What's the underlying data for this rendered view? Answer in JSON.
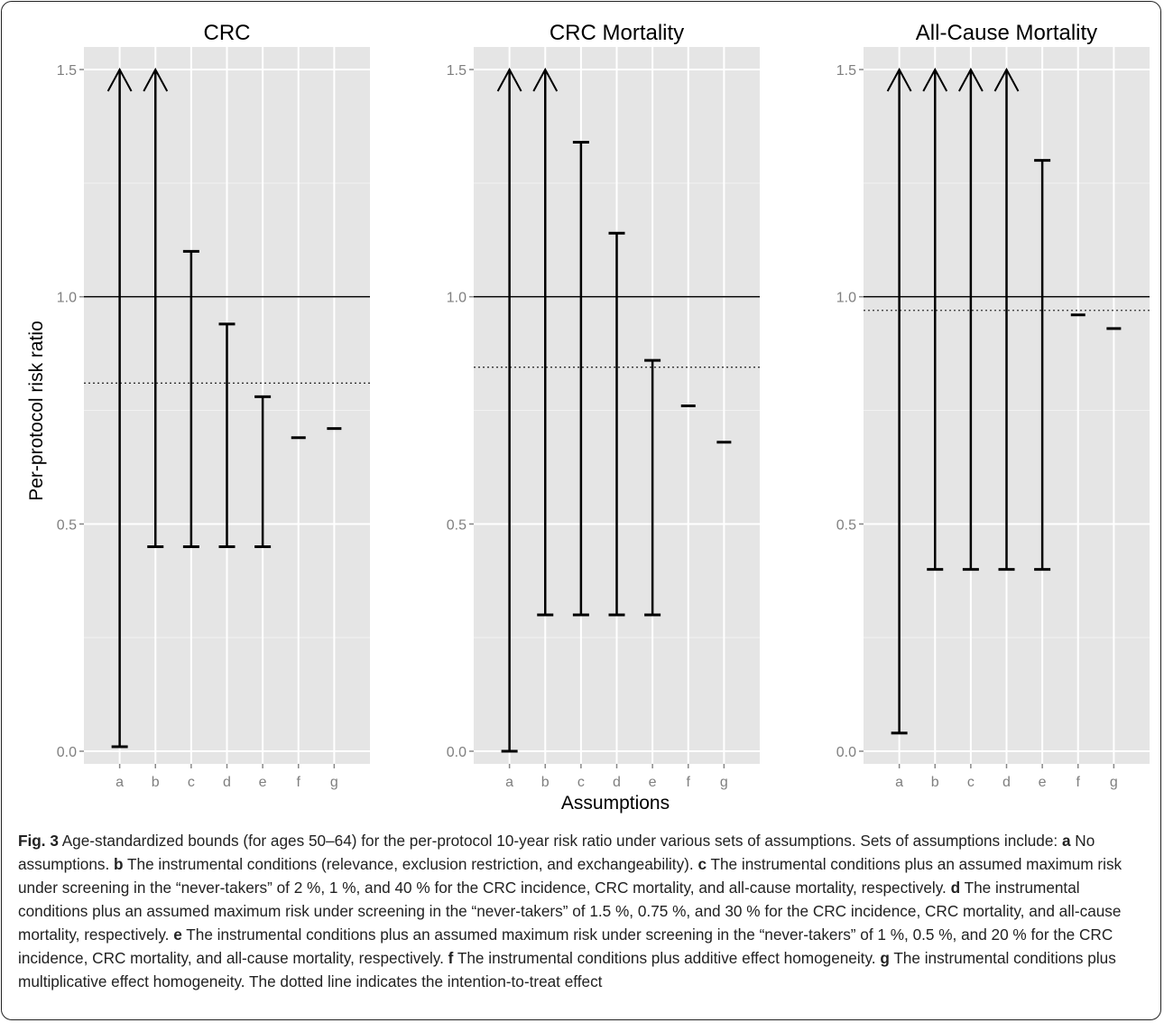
{
  "figure": {
    "y_axis_label": "Per-protocol risk ratio",
    "x_axis_label": "Assumptions",
    "caption_label": "Fig. 3",
    "caption_intro": "Age-standardized bounds (for ages 50–64) for the per-protocol 10-year risk ratio under various sets of assumptions. Sets of assumptions include: ",
    "caption_items": [
      {
        "letter": "a",
        "text": "No assumptions."
      },
      {
        "letter": "b",
        "text": "The instrumental conditions (relevance, exclusion restriction, and exchangeability)."
      },
      {
        "letter": "c",
        "text": "The instrumental conditions plus an assumed maximum risk under screening in the “never-takers” of 2 %, 1 %, and 40 % for the CRC incidence, CRC mortality, and all-cause mortality, respectively."
      },
      {
        "letter": "d",
        "text": "The instrumental conditions plus an assumed maximum risk under screening in the “never-takers” of 1.5 %, 0.75 %, and 30 % for the CRC incidence, CRC mortality, and all-cause mortality, respectively."
      },
      {
        "letter": "e",
        "text": "The instrumental conditions plus an assumed maximum risk under screening in the “never-takers” of 1 %, 0.5 %, and 20 % for the CRC incidence, CRC mortality, and all-cause mortality, respectively."
      },
      {
        "letter": "f",
        "text": "The instrumental conditions plus additive effect homogeneity."
      },
      {
        "letter": "g",
        "text": "The instrumental conditions plus multiplicative effect homogeneity. The dotted line indicates the intention-to-treat effect"
      }
    ]
  },
  "chart_data": [
    {
      "type": "interval",
      "title": "CRC",
      "categories": [
        "a",
        "b",
        "c",
        "d",
        "e",
        "f",
        "g"
      ],
      "ylim": [
        0.0,
        1.5
      ],
      "yticks": [
        "0.0",
        "0.5",
        "1.0",
        "1.5"
      ],
      "reference_line": 1.0,
      "itt_dotted_line": 0.81,
      "intervals": [
        {
          "x": "a",
          "lower": 0.01,
          "upper": 1.5,
          "upper_open": true
        },
        {
          "x": "b",
          "lower": 0.45,
          "upper": 1.5,
          "upper_open": true
        },
        {
          "x": "c",
          "lower": 0.45,
          "upper": 1.1
        },
        {
          "x": "d",
          "lower": 0.45,
          "upper": 0.94
        },
        {
          "x": "e",
          "lower": 0.45,
          "upper": 0.78
        },
        {
          "x": "f",
          "lower": 0.69,
          "upper": 0.69
        },
        {
          "x": "g",
          "lower": 0.71,
          "upper": 0.71
        }
      ]
    },
    {
      "type": "interval",
      "title": "CRC Mortality",
      "categories": [
        "a",
        "b",
        "c",
        "d",
        "e",
        "f",
        "g"
      ],
      "ylim": [
        0.0,
        1.5
      ],
      "yticks": [
        "0.0",
        "0.5",
        "1.0",
        "1.5"
      ],
      "reference_line": 1.0,
      "itt_dotted_line": 0.845,
      "intervals": [
        {
          "x": "a",
          "lower": 0.0,
          "upper": 1.5,
          "upper_open": true
        },
        {
          "x": "b",
          "lower": 0.3,
          "upper": 1.5,
          "upper_open": true
        },
        {
          "x": "c",
          "lower": 0.3,
          "upper": 1.34
        },
        {
          "x": "d",
          "lower": 0.3,
          "upper": 1.14
        },
        {
          "x": "e",
          "lower": 0.3,
          "upper": 0.86
        },
        {
          "x": "f",
          "lower": 0.76,
          "upper": 0.76
        },
        {
          "x": "g",
          "lower": 0.68,
          "upper": 0.68
        }
      ]
    },
    {
      "type": "interval",
      "title": "All-Cause Mortality",
      "categories": [
        "a",
        "b",
        "c",
        "d",
        "e",
        "f",
        "g"
      ],
      "ylim": [
        0.0,
        1.5
      ],
      "yticks": [
        "0.0",
        "0.5",
        "1.0",
        "1.5"
      ],
      "reference_line": 1.0,
      "itt_dotted_line": 0.97,
      "intervals": [
        {
          "x": "a",
          "lower": 0.04,
          "upper": 1.5,
          "upper_open": true
        },
        {
          "x": "b",
          "lower": 0.4,
          "upper": 1.5,
          "upper_open": true
        },
        {
          "x": "c",
          "lower": 0.4,
          "upper": 1.5,
          "upper_open": true
        },
        {
          "x": "d",
          "lower": 0.4,
          "upper": 1.5,
          "upper_open": true
        },
        {
          "x": "e",
          "lower": 0.4,
          "upper": 1.3
        },
        {
          "x": "f",
          "lower": 0.96,
          "upper": 0.96
        },
        {
          "x": "g",
          "lower": 0.93,
          "upper": 0.93
        }
      ]
    }
  ]
}
